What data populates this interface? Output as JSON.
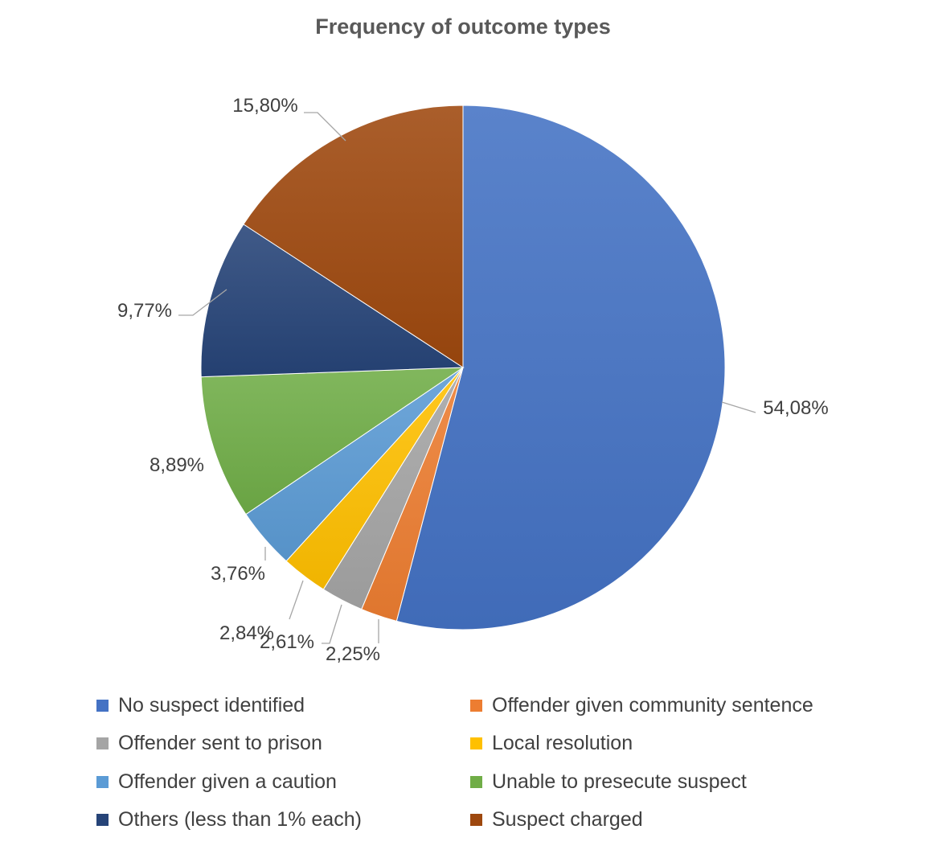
{
  "chart_data": {
    "type": "pie",
    "title": "Frequency of outcome types",
    "slices": [
      {
        "name": "No suspect identified",
        "value": 54.08,
        "label": "54,08%",
        "color": "#4472C4"
      },
      {
        "name": "Offender given community sentence",
        "value": 2.25,
        "label": "2,25%",
        "color": "#ED7D31"
      },
      {
        "name": "Offender sent to prison",
        "value": 2.61,
        "label": "2,61%",
        "color": "#A5A5A5"
      },
      {
        "name": "Local resolution",
        "value": 2.84,
        "label": "2,84%",
        "color": "#FFC000"
      },
      {
        "name": "Offender given a caution",
        "value": 3.76,
        "label": "3,76%",
        "color": "#5B9BD5"
      },
      {
        "name": "Unable to presecute suspect",
        "value": 8.89,
        "label": "8,89%",
        "color": "#70AD47"
      },
      {
        "name": "Others (less than 1% each)",
        "value": 9.77,
        "label": "9,77%",
        "color": "#264478"
      },
      {
        "name": "Suspect charged",
        "value": 15.8,
        "label": "15,80%",
        "color": "#9E480E"
      }
    ],
    "legend_position": "bottom"
  }
}
